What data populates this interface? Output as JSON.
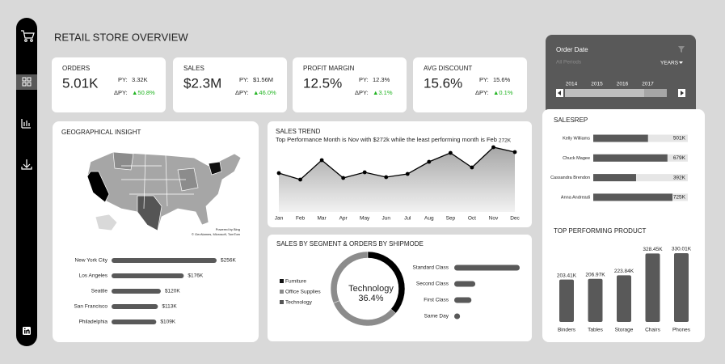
{
  "header": {
    "title": "RETAIL STORE OVERVIEW"
  },
  "kpis": [
    {
      "label": "ORDERS",
      "value": "5.01K",
      "py_label": "PY:",
      "py": "3.32K",
      "delta_label": "ΔPY:",
      "delta": "▲50.8%"
    },
    {
      "label": "SALES",
      "value": "$2.3M",
      "py_label": "PY:",
      "py": "$1.56M",
      "delta_label": "ΔPY:",
      "delta": "▲46.0%"
    },
    {
      "label": "PROFIT MARGIN",
      "value": "12.5%",
      "py_label": "PY:",
      "py": "12.3%",
      "delta_label": "ΔPY:",
      "delta": "▲3.1%"
    },
    {
      "label": "AVG DISCOUNT",
      "value": "15.6%",
      "py_label": "PY:",
      "py": "15.6%",
      "delta_label": "ΔPY:",
      "delta": "▲0.1%"
    }
  ],
  "filter": {
    "title": "Order Date",
    "selection": "All Periods",
    "level": "YEARS",
    "years": [
      "2014",
      "2015",
      "2016",
      "2017"
    ]
  },
  "map": {
    "attribution_1": "Powered by Bing",
    "attribution_2": "© GeoNames, Microsoft, TomTom"
  },
  "chart_data": [
    {
      "type": "hbar",
      "title": "GEOGRAPHICAL INSIGHT",
      "categories": [
        "New York City",
        "Los Angeles",
        "Seattle",
        "San Francisco",
        "Philadelphia"
      ],
      "values": [
        256,
        176,
        120,
        113,
        109
      ],
      "value_labels": [
        "$256K",
        "$176K",
        "$120K",
        "$113K",
        "$109K"
      ],
      "color": "#595959"
    },
    {
      "type": "line",
      "title": "SALES TREND",
      "subtitle": "Top Performance Month is Nov with $272k while the least performing month is Feb",
      "categories": [
        "Jan",
        "Feb",
        "Mar",
        "Apr",
        "May",
        "Jun",
        "Jul",
        "Aug",
        "Sep",
        "Oct",
        "Nov",
        "Dec"
      ],
      "values": [
        208,
        192,
        240,
        196,
        210,
        198,
        206,
        236,
        258,
        222,
        272,
        260
      ],
      "value_labels": [
        null,
        null,
        null,
        null,
        null,
        null,
        null,
        null,
        null,
        null,
        "272K",
        null
      ],
      "color": "#000000"
    },
    {
      "type": "pie",
      "title": "SALES BY SEGMENT & ORDERS BY SHIPMODE",
      "categories": [
        "Furniture",
        "Office Supplies",
        "Technology"
      ],
      "values": [
        32.3,
        31.3,
        36.4
      ],
      "value_labels": [
        null,
        null,
        "36.4%"
      ],
      "colors": [
        "#8c8c8c",
        "#8c8c8c",
        "#000000"
      ],
      "legend_colors": [
        "#111111",
        "#8c8c8c",
        "#555555"
      ]
    },
    {
      "type": "hbar2",
      "categories": [
        "Standard Class",
        "Second Class",
        "First Class",
        "Same Day"
      ],
      "values": [
        2994,
        964,
        787,
        264
      ],
      "color": "#595959"
    },
    {
      "type": "track",
      "title": "SALESREP",
      "categories": [
        "Kelly Williams",
        "Chuck Magee",
        "Cassandra Brendon",
        "Anna Andreadi"
      ],
      "values": [
        501,
        679,
        392,
        725
      ],
      "value_labels": [
        "501K",
        "679K",
        "392K",
        "725K"
      ],
      "color": "#595959",
      "track_color": "#e6e6e6"
    },
    {
      "type": "column",
      "title": "TOP PERFORMING PRODUCT",
      "categories": [
        "Binders",
        "Tables",
        "Storage",
        "Chairs",
        "Phones"
      ],
      "values": [
        203.41,
        206.97,
        223.84,
        328.45,
        330.01
      ],
      "value_labels": [
        "203.41K",
        "206.97K",
        "223.84K",
        "328.45K",
        "330.01K"
      ],
      "color": "#595959"
    }
  ]
}
